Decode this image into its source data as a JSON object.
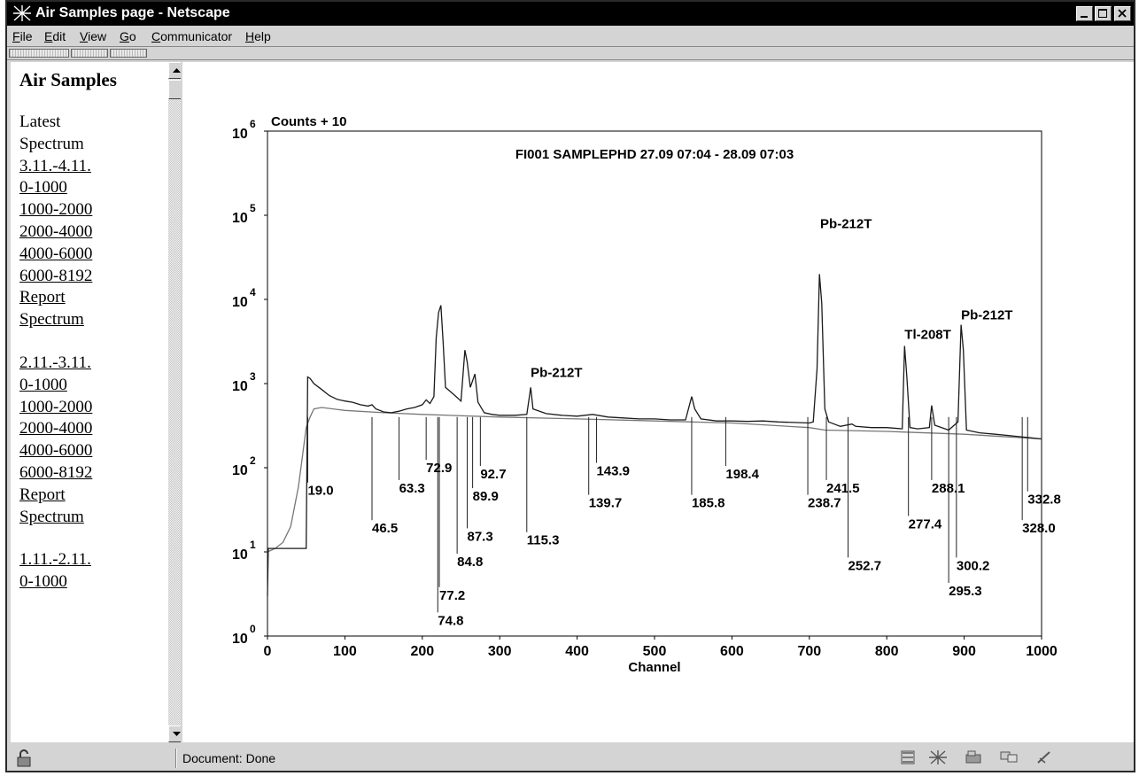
{
  "window": {
    "title": "Air Samples page - Netscape"
  },
  "menu": [
    {
      "accel": "F",
      "rest": "ile"
    },
    {
      "accel": "E",
      "rest": "dit"
    },
    {
      "accel": "V",
      "rest": "iew"
    },
    {
      "accel": "G",
      "rest": "o"
    },
    {
      "accel": "C",
      "rest": "ommunicator"
    },
    {
      "accel": "H",
      "rest": "elp"
    }
  ],
  "sidebar": {
    "title": "Air Samples",
    "lines": [
      {
        "text": "Latest",
        "link": false
      },
      {
        "text": "Spectrum",
        "link": false
      },
      {
        "text": "3.11.-4.11.",
        "link": true
      },
      {
        "text": "0-1000",
        "link": true
      },
      {
        "text": "1000-2000",
        "link": true
      },
      {
        "text": "2000-4000",
        "link": true
      },
      {
        "text": "4000-6000",
        "link": true
      },
      {
        "text": "6000-8192",
        "link": true
      },
      {
        "text": "Report",
        "link": true
      },
      {
        "text": "Spectrum",
        "link": true
      },
      {
        "text": "",
        "link": false
      },
      {
        "text": "2.11.-3.11.",
        "link": true
      },
      {
        "text": "0-1000",
        "link": true
      },
      {
        "text": "1000-2000",
        "link": true
      },
      {
        "text": "2000-4000",
        "link": true
      },
      {
        "text": "4000-6000",
        "link": true
      },
      {
        "text": "6000-8192",
        "link": true
      },
      {
        "text": "Report",
        "link": true
      },
      {
        "text": "Spectrum",
        "link": true
      },
      {
        "text": "",
        "link": false
      },
      {
        "text": "1.11.-2.11.",
        "link": true
      },
      {
        "text": "0-1000",
        "link": true
      }
    ]
  },
  "status": {
    "text": "Document: Done",
    "tray_icons": [
      "component-bar-icon",
      "navigator-icon",
      "mail-icon",
      "discussion-icon",
      "composer-icon"
    ]
  },
  "chart_data": {
    "type": "line",
    "title": "FI001 SAMPLEPHD 27.09 07:04 - 28.09 07:03",
    "ylabel": "Counts + 10",
    "xlabel": "Channel",
    "xlim": [
      0,
      1000
    ],
    "ylim": [
      1,
      1000000
    ],
    "yscale": "log",
    "x_ticks": [
      "0",
      "100",
      "200",
      "300",
      "400",
      "500",
      "600",
      "700",
      "800",
      "900",
      "1000"
    ],
    "y_ticks": [
      {
        "base": "10",
        "exp": "0"
      },
      {
        "base": "10",
        "exp": "1"
      },
      {
        "base": "10",
        "exp": "2"
      },
      {
        "base": "10",
        "exp": "3"
      },
      {
        "base": "10",
        "exp": "4"
      },
      {
        "base": "10",
        "exp": "5"
      },
      {
        "base": "10",
        "exp": "6"
      }
    ],
    "spectrum_points": [
      [
        0,
        3
      ],
      [
        1,
        11
      ],
      [
        5,
        11
      ],
      [
        10,
        11
      ],
      [
        20,
        11
      ],
      [
        30,
        11
      ],
      [
        40,
        11
      ],
      [
        50,
        11
      ],
      [
        52,
        1200
      ],
      [
        55,
        1150
      ],
      [
        60,
        1000
      ],
      [
        70,
        850
      ],
      [
        80,
        720
      ],
      [
        90,
        650
      ],
      [
        100,
        620
      ],
      [
        110,
        600
      ],
      [
        120,
        560
      ],
      [
        130,
        540
      ],
      [
        135,
        560
      ],
      [
        140,
        500
      ],
      [
        150,
        460
      ],
      [
        160,
        450
      ],
      [
        170,
        470
      ],
      [
        180,
        500
      ],
      [
        190,
        520
      ],
      [
        200,
        560
      ],
      [
        205,
        640
      ],
      [
        210,
        580
      ],
      [
        215,
        700
      ],
      [
        218,
        3500
      ],
      [
        221,
        7000
      ],
      [
        224,
        8500
      ],
      [
        227,
        3000
      ],
      [
        230,
        900
      ],
      [
        240,
        750
      ],
      [
        250,
        620
      ],
      [
        255,
        2500
      ],
      [
        258,
        1800
      ],
      [
        262,
        900
      ],
      [
        268,
        1300
      ],
      [
        272,
        600
      ],
      [
        280,
        450
      ],
      [
        290,
        430
      ],
      [
        300,
        420
      ],
      [
        320,
        420
      ],
      [
        335,
        430
      ],
      [
        340,
        900
      ],
      [
        343,
        500
      ],
      [
        360,
        440
      ],
      [
        380,
        420
      ],
      [
        400,
        410
      ],
      [
        420,
        430
      ],
      [
        440,
        400
      ],
      [
        460,
        390
      ],
      [
        480,
        380
      ],
      [
        500,
        380
      ],
      [
        520,
        370
      ],
      [
        540,
        370
      ],
      [
        548,
        700
      ],
      [
        552,
        500
      ],
      [
        560,
        380
      ],
      [
        580,
        360
      ],
      [
        600,
        360
      ],
      [
        620,
        355
      ],
      [
        640,
        360
      ],
      [
        660,
        350
      ],
      [
        680,
        345
      ],
      [
        700,
        340
      ],
      [
        705,
        350
      ],
      [
        710,
        1500
      ],
      [
        713,
        20000
      ],
      [
        716,
        9000
      ],
      [
        720,
        500
      ],
      [
        725,
        350
      ],
      [
        740,
        310
      ],
      [
        755,
        330
      ],
      [
        760,
        310
      ],
      [
        780,
        300
      ],
      [
        800,
        300
      ],
      [
        820,
        290
      ],
      [
        823,
        2800
      ],
      [
        826,
        1200
      ],
      [
        830,
        300
      ],
      [
        840,
        290
      ],
      [
        855,
        300
      ],
      [
        858,
        550
      ],
      [
        862,
        320
      ],
      [
        880,
        280
      ],
      [
        892,
        350
      ],
      [
        896,
        5000
      ],
      [
        899,
        2500
      ],
      [
        903,
        280
      ],
      [
        920,
        260
      ],
      [
        940,
        250
      ],
      [
        960,
        240
      ],
      [
        980,
        230
      ],
      [
        1000,
        220
      ]
    ],
    "baseline_points": [
      [
        0,
        10
      ],
      [
        10,
        11
      ],
      [
        20,
        13
      ],
      [
        30,
        20
      ],
      [
        40,
        60
      ],
      [
        50,
        300
      ],
      [
        55,
        400
      ],
      [
        60,
        500
      ],
      [
        70,
        520
      ],
      [
        100,
        480
      ],
      [
        150,
        450
      ],
      [
        200,
        430
      ],
      [
        300,
        400
      ],
      [
        400,
        380
      ],
      [
        500,
        360
      ],
      [
        600,
        340
      ],
      [
        700,
        300
      ],
      [
        720,
        280
      ],
      [
        800,
        270
      ],
      [
        900,
        250
      ],
      [
        1000,
        220
      ]
    ],
    "drop_lines": [
      {
        "channel": 19.0,
        "bottom": 12
      },
      {
        "channel": 46.5,
        "bottom": 12
      },
      {
        "channel": 63.3,
        "bottom": 12
      },
      {
        "channel": 72.9,
        "bottom": 12
      },
      {
        "channel": 74.8,
        "bottom": 12
      },
      {
        "channel": 77.2,
        "bottom": 12
      },
      {
        "channel": 84.8,
        "bottom": 12
      },
      {
        "channel": 87.3,
        "bottom": 12
      },
      {
        "channel": 89.9,
        "bottom": 12
      },
      {
        "channel": 92.7,
        "bottom": 12
      },
      {
        "channel": 115.3,
        "bottom": 12
      },
      {
        "channel": 139.7,
        "bottom": 12
      },
      {
        "channel": 143.9,
        "bottom": 12
      },
      {
        "channel": 185.8,
        "bottom": 12
      },
      {
        "channel": 198.4,
        "bottom": 12
      },
      {
        "channel": 238.7,
        "bottom": 12
      },
      {
        "channel": 241.5,
        "bottom": 12
      },
      {
        "channel": 252.7,
        "bottom": 12
      },
      {
        "channel": 277.4,
        "bottom": 12
      },
      {
        "channel": 288.1,
        "bottom": 12
      },
      {
        "channel": 295.3,
        "bottom": 12
      },
      {
        "channel": 300.2,
        "bottom": 12
      },
      {
        "channel": 328.0,
        "bottom": 12
      },
      {
        "channel": 332.8,
        "bottom": 12
      }
    ],
    "peak_labels": [
      {
        "text": "Pb-212T",
        "x": 340,
        "y": 1200
      },
      {
        "text": "Pb-212T",
        "x": 714,
        "y": 70000
      },
      {
        "text": "Tl-208T",
        "x": 823,
        "y": 3400
      },
      {
        "text": "Pb-212T",
        "x": 896,
        "y": 5800
      }
    ],
    "energy_labels": [
      {
        "text": "19.0",
        "x": 52,
        "y": 70
      },
      {
        "text": "46.5",
        "x": 135,
        "y": 25
      },
      {
        "text": "63.3",
        "x": 170,
        "y": 75
      },
      {
        "text": "72.9",
        "x": 205,
        "y": 130
      },
      {
        "text": "74.8",
        "x": 220,
        "y": 2.0
      },
      {
        "text": "77.2",
        "x": 222,
        "y": 4.0
      },
      {
        "text": "84.8",
        "x": 245,
        "y": 10
      },
      {
        "text": "87.3",
        "x": 258,
        "y": 20
      },
      {
        "text": "89.9",
        "x": 265,
        "y": 60
      },
      {
        "text": "92.7",
        "x": 275,
        "y": 110
      },
      {
        "text": "115.3",
        "x": 335,
        "y": 18
      },
      {
        "text": "139.7",
        "x": 415,
        "y": 50
      },
      {
        "text": "143.9",
        "x": 425,
        "y": 120
      },
      {
        "text": "185.8",
        "x": 548,
        "y": 50
      },
      {
        "text": "198.4",
        "x": 592,
        "y": 110
      },
      {
        "text": "238.7",
        "x": 698,
        "y": 50
      },
      {
        "text": "241.5",
        "x": 722,
        "y": 75
      },
      {
        "text": "252.7",
        "x": 750,
        "y": 9
      },
      {
        "text": "277.4",
        "x": 828,
        "y": 28
      },
      {
        "text": "288.1",
        "x": 858,
        "y": 75
      },
      {
        "text": "295.3",
        "x": 880,
        "y": 4.5
      },
      {
        "text": "300.2",
        "x": 890,
        "y": 9
      },
      {
        "text": "328.0",
        "x": 975,
        "y": 25
      },
      {
        "text": "332.8",
        "x": 982,
        "y": 55
      }
    ]
  }
}
